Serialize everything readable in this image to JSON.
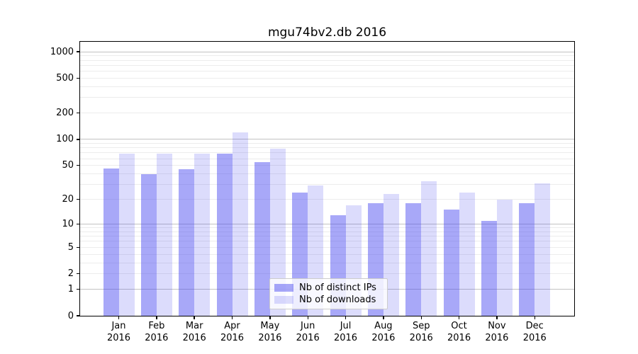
{
  "figure": {
    "title": "mgu74bv2.db 2016"
  },
  "chart_data": {
    "type": "bar",
    "title": "mgu74bv2.db 2016",
    "categories": [
      "Jan 2016",
      "Feb 2016",
      "Mar 2016",
      "Apr 2016",
      "May 2016",
      "Jun 2016",
      "Jul 2016",
      "Aug 2016",
      "Sep 2016",
      "Oct 2016",
      "Nov 2016",
      "Dec 2016"
    ],
    "series": [
      {
        "name": "Nb of distinct IPs",
        "values": [
          46,
          40,
          45,
          68,
          55,
          24,
          13,
          18,
          18,
          15,
          11,
          18
        ]
      },
      {
        "name": "Nb of downloads",
        "values": [
          69,
          68,
          69,
          120,
          78,
          29,
          17,
          23,
          33,
          24,
          20,
          31
        ]
      }
    ],
    "bar_colors": [
      "rgba(70,70,240,0.47)",
      "rgba(70,70,240,0.19)"
    ],
    "yscale": "log1p",
    "yticks": [
      0,
      1,
      2,
      5,
      10,
      20,
      50,
      100,
      200,
      500,
      1000
    ],
    "ylim": [
      0,
      1300
    ],
    "xlabel": "",
    "ylabel": "",
    "grid": "both",
    "legend_position": "lower center",
    "gridline_colors": {
      "major": "#c2c2c2",
      "minor": "#ececec"
    }
  }
}
